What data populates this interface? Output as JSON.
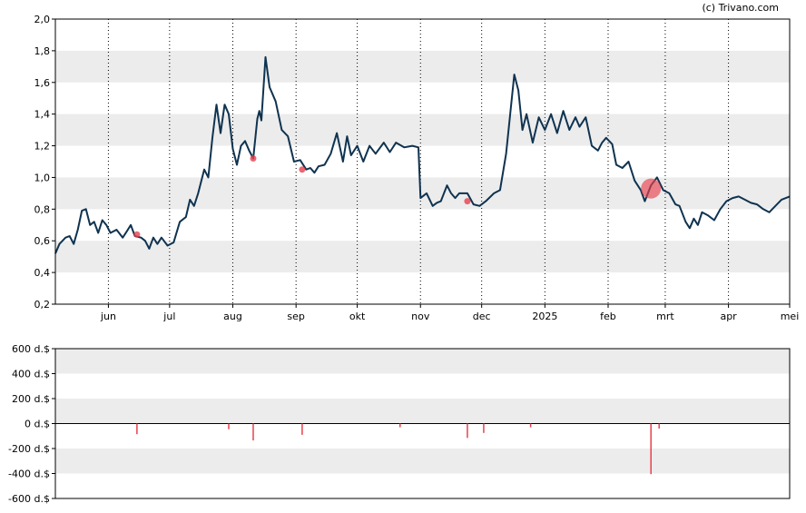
{
  "credit": "(c) Trivano.com",
  "colors": {
    "price_line": "#0f3350",
    "marker": "#e8404d",
    "band": "#ececec",
    "frame": "#000000",
    "grid": "#000000"
  },
  "chart_data": [
    {
      "type": "line",
      "title": "",
      "xlabel": "",
      "ylabel": "",
      "ylim": [
        0.2,
        2.0
      ],
      "yticks": [
        "2,0",
        "1,8",
        "1,6",
        "1,4",
        "1,2",
        "1,0",
        "0,8",
        "0,6",
        "0,4",
        "0,2"
      ],
      "ytick_values": [
        2.0,
        1.8,
        1.6,
        1.4,
        1.2,
        1.0,
        0.8,
        0.6,
        0.4,
        0.2
      ],
      "xlim": [
        "2024-05-06",
        "2025-05-01"
      ],
      "xticks": [
        "jun",
        "jul",
        "aug",
        "sep",
        "okt",
        "nov",
        "dec",
        "2025",
        "feb",
        "mrt",
        "apr",
        "mei"
      ],
      "xtick_dates": [
        "2024-06-01",
        "2024-07-01",
        "2024-08-01",
        "2024-09-01",
        "2024-10-01",
        "2024-11-01",
        "2024-12-01",
        "2025-01-01",
        "2025-02-01",
        "2025-03-01",
        "2025-04-01",
        "2025-05-01"
      ],
      "grid": "vertical dotted at month ticks, alternating horizontal bands",
      "series": [
        {
          "values": [
            [
              "2024-05-06",
              0.52
            ],
            [
              "2024-05-08",
              0.58
            ],
            [
              "2024-05-11",
              0.62
            ],
            [
              "2024-05-13",
              0.63
            ],
            [
              "2024-05-15",
              0.58
            ],
            [
              "2024-05-17",
              0.67
            ],
            [
              "2024-05-19",
              0.79
            ],
            [
              "2024-05-21",
              0.8
            ],
            [
              "2024-05-23",
              0.7
            ],
            [
              "2024-05-25",
              0.72
            ],
            [
              "2024-05-27",
              0.65
            ],
            [
              "2024-05-29",
              0.73
            ],
            [
              "2024-05-31",
              0.7
            ],
            [
              "2024-06-02",
              0.65
            ],
            [
              "2024-06-05",
              0.67
            ],
            [
              "2024-06-08",
              0.62
            ],
            [
              "2024-06-10",
              0.66
            ],
            [
              "2024-06-12",
              0.7
            ],
            [
              "2024-06-14",
              0.63
            ],
            [
              "2024-06-17",
              0.62
            ],
            [
              "2024-06-19",
              0.6
            ],
            [
              "2024-06-21",
              0.55
            ],
            [
              "2024-06-23",
              0.62
            ],
            [
              "2024-06-25",
              0.58
            ],
            [
              "2024-06-27",
              0.62
            ],
            [
              "2024-06-30",
              0.57
            ],
            [
              "2024-07-03",
              0.59
            ],
            [
              "2024-07-06",
              0.72
            ],
            [
              "2024-07-09",
              0.75
            ],
            [
              "2024-07-11",
              0.86
            ],
            [
              "2024-07-13",
              0.82
            ],
            [
              "2024-07-15",
              0.9
            ],
            [
              "2024-07-18",
              1.05
            ],
            [
              "2024-07-20",
              1.0
            ],
            [
              "2024-07-22",
              1.25
            ],
            [
              "2024-07-24",
              1.46
            ],
            [
              "2024-07-26",
              1.28
            ],
            [
              "2024-07-28",
              1.46
            ],
            [
              "2024-07-30",
              1.4
            ],
            [
              "2024-08-01",
              1.18
            ],
            [
              "2024-08-03",
              1.08
            ],
            [
              "2024-08-05",
              1.2
            ],
            [
              "2024-08-07",
              1.23
            ],
            [
              "2024-08-09",
              1.17
            ],
            [
              "2024-08-11",
              1.12
            ],
            [
              "2024-08-13",
              1.37
            ],
            [
              "2024-08-14",
              1.42
            ],
            [
              "2024-08-15",
              1.36
            ],
            [
              "2024-08-17",
              1.76
            ],
            [
              "2024-08-19",
              1.57
            ],
            [
              "2024-08-22",
              1.48
            ],
            [
              "2024-08-25",
              1.3
            ],
            [
              "2024-08-28",
              1.26
            ],
            [
              "2024-08-31",
              1.1
            ],
            [
              "2024-09-03",
              1.11
            ],
            [
              "2024-09-06",
              1.05
            ],
            [
              "2024-09-08",
              1.06
            ],
            [
              "2024-09-10",
              1.03
            ],
            [
              "2024-09-12",
              1.07
            ],
            [
              "2024-09-15",
              1.08
            ],
            [
              "2024-09-18",
              1.15
            ],
            [
              "2024-09-21",
              1.28
            ],
            [
              "2024-09-24",
              1.1
            ],
            [
              "2024-09-26",
              1.26
            ],
            [
              "2024-09-28",
              1.14
            ],
            [
              "2024-10-01",
              1.2
            ],
            [
              "2024-10-04",
              1.1
            ],
            [
              "2024-10-07",
              1.2
            ],
            [
              "2024-10-10",
              1.15
            ],
            [
              "2024-10-14",
              1.22
            ],
            [
              "2024-10-17",
              1.16
            ],
            [
              "2024-10-20",
              1.22
            ],
            [
              "2024-10-24",
              1.19
            ],
            [
              "2024-10-28",
              1.2
            ],
            [
              "2024-10-31",
              1.19
            ],
            [
              "2024-11-01",
              0.87
            ],
            [
              "2024-11-04",
              0.9
            ],
            [
              "2024-11-07",
              0.82
            ],
            [
              "2024-11-09",
              0.84
            ],
            [
              "2024-11-11",
              0.85
            ],
            [
              "2024-11-14",
              0.95
            ],
            [
              "2024-11-16",
              0.9
            ],
            [
              "2024-11-18",
              0.87
            ],
            [
              "2024-11-20",
              0.9
            ],
            [
              "2024-11-24",
              0.9
            ],
            [
              "2024-11-27",
              0.83
            ],
            [
              "2024-11-30",
              0.82
            ],
            [
              "2024-12-03",
              0.85
            ],
            [
              "2024-12-07",
              0.9
            ],
            [
              "2024-12-10",
              0.92
            ],
            [
              "2024-12-13",
              1.15
            ],
            [
              "2024-12-15",
              1.4
            ],
            [
              "2024-12-17",
              1.65
            ],
            [
              "2024-12-19",
              1.55
            ],
            [
              "2024-12-21",
              1.3
            ],
            [
              "2024-12-23",
              1.4
            ],
            [
              "2024-12-26",
              1.22
            ],
            [
              "2024-12-29",
              1.38
            ],
            [
              "2025-01-01",
              1.3
            ],
            [
              "2025-01-04",
              1.4
            ],
            [
              "2025-01-07",
              1.28
            ],
            [
              "2025-01-10",
              1.42
            ],
            [
              "2025-01-13",
              1.3
            ],
            [
              "2025-01-16",
              1.38
            ],
            [
              "2025-01-18",
              1.32
            ],
            [
              "2025-01-21",
              1.38
            ],
            [
              "2025-01-24",
              1.2
            ],
            [
              "2025-01-27",
              1.17
            ],
            [
              "2025-01-29",
              1.22
            ],
            [
              "2025-01-31",
              1.25
            ],
            [
              "2025-02-03",
              1.21
            ],
            [
              "2025-02-05",
              1.08
            ],
            [
              "2025-02-08",
              1.06
            ],
            [
              "2025-02-11",
              1.1
            ],
            [
              "2025-02-14",
              0.98
            ],
            [
              "2025-02-17",
              0.92
            ],
            [
              "2025-02-19",
              0.85
            ],
            [
              "2025-02-22",
              0.95
            ],
            [
              "2025-02-25",
              1.0
            ],
            [
              "2025-02-28",
              0.92
            ],
            [
              "2025-03-03",
              0.9
            ],
            [
              "2025-03-06",
              0.83
            ],
            [
              "2025-03-08",
              0.82
            ],
            [
              "2025-03-11",
              0.72
            ],
            [
              "2025-03-13",
              0.68
            ],
            [
              "2025-03-15",
              0.74
            ],
            [
              "2025-03-17",
              0.7
            ],
            [
              "2025-03-19",
              0.78
            ],
            [
              "2025-03-22",
              0.76
            ],
            [
              "2025-03-25",
              0.73
            ],
            [
              "2025-03-28",
              0.8
            ],
            [
              "2025-03-31",
              0.85
            ],
            [
              "2025-04-03",
              0.87
            ],
            [
              "2025-04-06",
              0.88
            ],
            [
              "2025-04-09",
              0.86
            ],
            [
              "2025-04-12",
              0.84
            ],
            [
              "2025-04-15",
              0.83
            ],
            [
              "2025-04-18",
              0.8
            ],
            [
              "2025-04-21",
              0.78
            ],
            [
              "2025-04-24",
              0.82
            ],
            [
              "2025-04-27",
              0.86
            ],
            [
              "2025-05-01",
              0.88
            ]
          ]
        }
      ],
      "markers": [
        {
          "date": "2024-06-15",
          "value": 0.64,
          "size": "small"
        },
        {
          "date": "2024-08-11",
          "value": 1.12,
          "size": "small"
        },
        {
          "date": "2024-09-04",
          "value": 1.05,
          "size": "small"
        },
        {
          "date": "2024-11-24",
          "value": 0.85,
          "size": "small"
        },
        {
          "date": "2025-02-22",
          "value": 0.93,
          "size": "large"
        }
      ]
    },
    {
      "type": "bar",
      "title": "",
      "xlabel": "",
      "ylabel": "",
      "ylim": [
        -600,
        600
      ],
      "yticks": [
        "600 d.$",
        "400 d.$",
        "200 d.$",
        "0 d.$",
        "-200 d.$",
        "-400 d.$",
        "-600 d.$"
      ],
      "ytick_values": [
        600,
        400,
        200,
        0,
        -200,
        -400,
        -600
      ],
      "xlim": [
        "2024-05-06",
        "2025-05-01"
      ],
      "series": [
        {
          "values": [
            [
              "2024-06-15",
              -85
            ],
            [
              "2024-07-30",
              -45
            ],
            [
              "2024-08-11",
              -135
            ],
            [
              "2024-09-04",
              -90
            ],
            [
              "2024-10-22",
              -30
            ],
            [
              "2024-11-24",
              -115
            ],
            [
              "2024-12-02",
              -75
            ],
            [
              "2024-12-25",
              -30
            ],
            [
              "2025-02-22",
              -405
            ],
            [
              "2025-02-26",
              -40
            ]
          ]
        }
      ]
    }
  ]
}
